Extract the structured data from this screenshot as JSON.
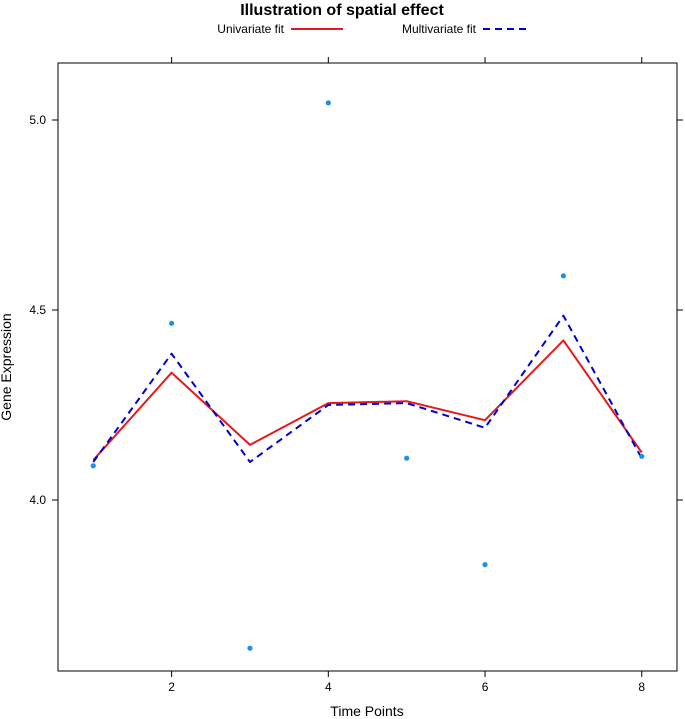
{
  "chart_data": {
    "type": "line",
    "title": "Illustration of spatial effect",
    "xlabel": "Time Points",
    "ylabel": "Gene Expression",
    "xlim": [
      0.55,
      8.45
    ],
    "ylim": [
      3.55,
      5.15
    ],
    "xticks": [
      2,
      4,
      6,
      8
    ],
    "xtick_labels": [
      "2",
      "4",
      "6",
      "8"
    ],
    "yticks": [
      4.0,
      4.5,
      5.0
    ],
    "ytick_labels": [
      "4.0",
      "4.5",
      "5.0"
    ],
    "grid": false,
    "legend_position": "top",
    "x": [
      1,
      2,
      3,
      4,
      5,
      6,
      7,
      8
    ],
    "points": {
      "y": [
        4.09,
        4.465,
        3.61,
        5.045,
        4.11,
        3.83,
        4.59,
        4.115
      ],
      "color": "#1e8fe6"
    },
    "series": [
      {
        "name": "Univariate fit",
        "values": [
          4.105,
          4.335,
          4.145,
          4.255,
          4.26,
          4.21,
          4.42,
          4.125
        ],
        "color": "#e31a1c",
        "style": "solid"
      },
      {
        "name": "Multivariate fit",
        "values": [
          4.1,
          4.385,
          4.1,
          4.25,
          4.255,
          4.19,
          4.485,
          4.11
        ],
        "color": "#0000cc",
        "style": "dashed"
      }
    ]
  }
}
